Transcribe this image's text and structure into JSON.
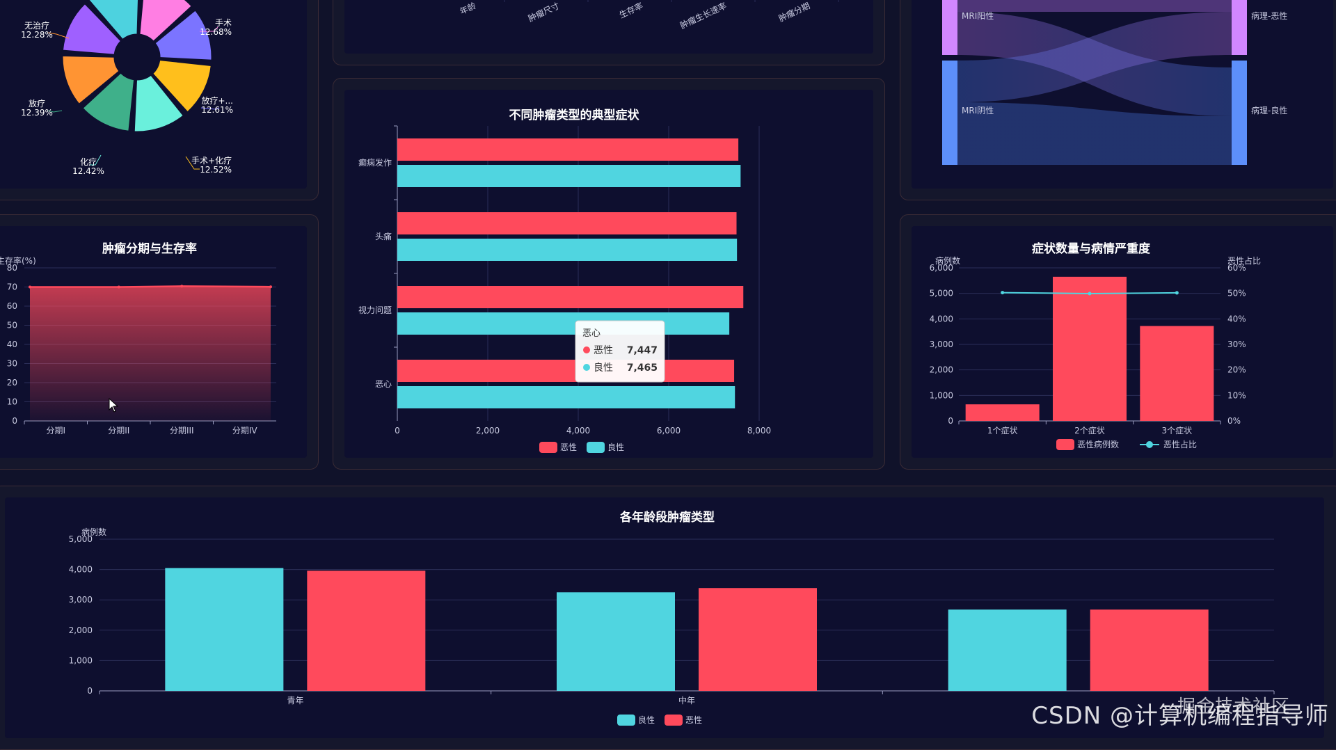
{
  "colors": {
    "red": "#ff4a5c",
    "cyan": "#50d5e0",
    "grid": "#2b2e58",
    "axis": "#9a9cc0",
    "text": "#c8cae0"
  },
  "chart_data": [
    {
      "id": "treatment_pie",
      "type": "pie",
      "labels": [
        "手术",
        "放疗+...",
        "手术+化疗",
        "化疗",
        "放疗",
        "无治疗"
      ],
      "values": [
        12.68,
        12.61,
        12.52,
        12.42,
        12.39,
        12.28
      ],
      "value_labels": [
        "12.68%",
        "12.61%",
        "12.52%",
        "12.42%",
        "12.39%",
        "12.28%"
      ]
    },
    {
      "id": "correlation_axis",
      "type": "heatmap",
      "x_labels": [
        "年龄",
        "肿瘤尺寸",
        "生存率",
        "肿瘤生长速率",
        "肿瘤分期"
      ]
    },
    {
      "id": "mri_sankey",
      "type": "sankey",
      "left_nodes": [
        "MRI阳性",
        "MRI阴性"
      ],
      "right_nodes": [
        "病理-恶性",
        "病理-良性"
      ]
    },
    {
      "id": "stage_survival",
      "type": "area",
      "title": "肿瘤分期与生存率",
      "ylabel": "生存率(%)",
      "categories": [
        "分期I",
        "分期II",
        "分期III",
        "分期IV"
      ],
      "values": [
        70.0,
        70.0,
        70.4,
        70.1
      ],
      "ylim": [
        0,
        80
      ],
      "yticks": [
        "0",
        "10",
        "20",
        "30",
        "40",
        "50",
        "60",
        "70",
        "80"
      ]
    },
    {
      "id": "symptoms",
      "type": "bar",
      "orientation": "horizontal",
      "title": "不同肿瘤类型的典型症状",
      "categories": [
        "癫痫发作",
        "头痛",
        "视力问题",
        "恶心"
      ],
      "series": [
        {
          "name": "恶性",
          "values": [
            7540,
            7500,
            7650,
            7447
          ]
        },
        {
          "name": "良性",
          "values": [
            7590,
            7510,
            7340,
            7465
          ]
        }
      ],
      "xlim": [
        0,
        8000
      ],
      "xticks": [
        "0",
        "2,000",
        "4,000",
        "6,000",
        "8,000"
      ],
      "tooltip": {
        "title": "恶心",
        "rows": [
          {
            "name": "恶性",
            "value": "7,447"
          },
          {
            "name": "良性",
            "value": "7,465"
          }
        ]
      }
    },
    {
      "id": "symptom_count",
      "type": "bar",
      "title": "症状数量与病情严重度",
      "ylabel": "病例数",
      "ylabel_right": "恶性占比",
      "categories": [
        "1个症状",
        "2个症状",
        "3个症状"
      ],
      "series": [
        {
          "name": "恶性病例数",
          "values": [
            650,
            5650,
            3720
          ]
        },
        {
          "name": "恶性占比",
          "values": [
            50.3,
            49.9,
            50.2
          ]
        }
      ],
      "ylim": [
        0,
        6000
      ],
      "yticks": [
        "0",
        "1,000",
        "2,000",
        "3,000",
        "4,000",
        "5,000",
        "6,000"
      ],
      "ylim_right": [
        0,
        60
      ],
      "yticks_right": [
        "0%",
        "10%",
        "20%",
        "30%",
        "40%",
        "50%",
        "60%"
      ]
    },
    {
      "id": "age_groups",
      "type": "bar",
      "title": "各年龄段肿瘤类型",
      "ylabel": "病例数",
      "categories": [
        "青年",
        "中年",
        ""
      ],
      "series": [
        {
          "name": "良性",
          "values": [
            4050,
            3250,
            2680
          ]
        },
        {
          "name": "恶性",
          "values": [
            3960,
            3390,
            2680
          ]
        }
      ],
      "ylim": [
        0,
        5000
      ],
      "yticks": [
        "0",
        "1,000",
        "2,000",
        "3,000",
        "4,000",
        "5,000"
      ]
    }
  ],
  "watermark": {
    "text": "CSDN @计算机编程指导师",
    "sub": "掘金技术社区"
  }
}
